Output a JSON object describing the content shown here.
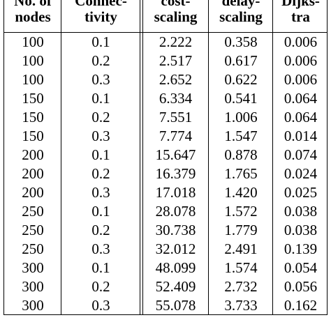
{
  "table": {
    "headers": [
      [
        "No. of",
        "nodes"
      ],
      [
        "Connec-",
        "tivity"
      ],
      [
        "cost-",
        "scaling"
      ],
      [
        "delay-",
        "scaling"
      ],
      [
        "Dijks-",
        "tra"
      ]
    ],
    "rows": [
      [
        "100",
        "0.1",
        "2.222",
        "0.358",
        "0.006"
      ],
      [
        "100",
        "0.2",
        "2.517",
        "0.617",
        "0.006"
      ],
      [
        "100",
        "0.3",
        "2.652",
        "0.622",
        "0.006"
      ],
      [
        "150",
        "0.1",
        "6.334",
        "0.541",
        "0.064"
      ],
      [
        "150",
        "0.2",
        "7.551",
        "1.006",
        "0.064"
      ],
      [
        "150",
        "0.3",
        "7.774",
        "1.547",
        "0.014"
      ],
      [
        "200",
        "0.1",
        "15.647",
        "0.878",
        "0.074"
      ],
      [
        "200",
        "0.2",
        "16.379",
        "1.765",
        "0.024"
      ],
      [
        "200",
        "0.3",
        "17.018",
        "1.420",
        "0.025"
      ],
      [
        "250",
        "0.1",
        "28.078",
        "1.572",
        "0.038"
      ],
      [
        "250",
        "0.2",
        "30.738",
        "1.779",
        "0.038"
      ],
      [
        "250",
        "0.3",
        "32.012",
        "2.491",
        "0.139"
      ],
      [
        "300",
        "0.1",
        "48.099",
        "1.574",
        "0.054"
      ],
      [
        "300",
        "0.2",
        "52.409",
        "2.732",
        "0.056"
      ],
      [
        "300",
        "0.3",
        "55.078",
        "3.733",
        "0.162"
      ]
    ]
  }
}
